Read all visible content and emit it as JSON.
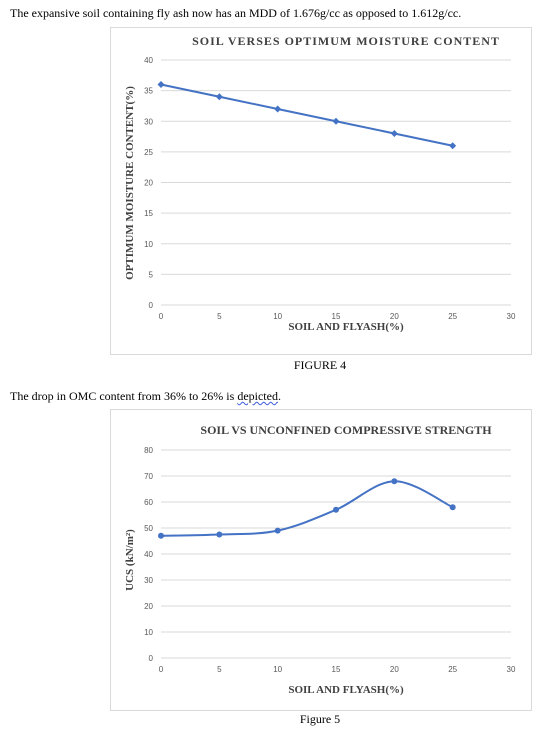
{
  "text": {
    "para1": "The expansive soil containing fly ash now has an MDD of 1.676g/cc as opposed to 1.612g/cc.",
    "para2_main": "The drop in OMC content from 36% to 26% is ",
    "para2_word": "depicted",
    "para2_end": ".",
    "figure4_caption": "FIGURE 4",
    "figure5_caption": "Figure 5"
  },
  "colors": {
    "series": "#4472c4",
    "grid": "#d9d9d9",
    "text": "#404040"
  },
  "chart_data": [
    {
      "type": "line",
      "title": "SOIL VERSES OPTIMUM MOISTURE CONTENT",
      "xlabel": "SOIL AND FLYASH(%)",
      "ylabel": "OPTIMUM MOISTURE CONTENT(%)",
      "x": [
        0,
        5,
        10,
        15,
        20,
        25
      ],
      "y": [
        36,
        34,
        32,
        30,
        28,
        26
      ],
      "xticks": [
        "0",
        "5",
        "10",
        "15",
        "20",
        "25",
        "30"
      ],
      "yticks": [
        "0",
        "5",
        "10",
        "15",
        "20",
        "25",
        "30",
        "35",
        "40"
      ],
      "xlim": [
        0,
        30
      ],
      "ylim": [
        0,
        40
      ],
      "smooth": false,
      "grid": true,
      "markers": "diamond"
    },
    {
      "type": "line",
      "title": "SOIL VS UNCONFINED COMPRESSIVE STRENGTH",
      "xlabel": "SOIL AND FLYASH(%)",
      "ylabel": "UCS (kN/m²)",
      "x": [
        0,
        5,
        10,
        15,
        20,
        25
      ],
      "y": [
        47,
        47.5,
        49,
        57,
        68,
        58
      ],
      "xticks": [
        "0",
        "5",
        "10",
        "15",
        "20",
        "25",
        "30"
      ],
      "yticks": [
        "0",
        "10",
        "20",
        "30",
        "40",
        "50",
        "60",
        "70",
        "80"
      ],
      "xlim": [
        0,
        30
      ],
      "ylim": [
        0,
        80
      ],
      "smooth": true,
      "grid": true,
      "markers": "circle"
    }
  ]
}
